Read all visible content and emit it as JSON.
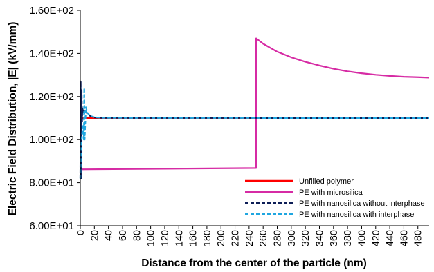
{
  "chart_data": {
    "type": "line",
    "xlabel": "Distance from the center of the particle (nm)",
    "ylabel": "Electric Field Distribution, |E| (kV/mm)",
    "xlim": [
      0,
      496
    ],
    "ylim": [
      60,
      160
    ],
    "y_ticks": [
      60,
      80,
      100,
      120,
      140,
      160
    ],
    "y_tick_labels": [
      "6.00E+01",
      "8.00E+01",
      "1.00E+02",
      "1.20E+02",
      "1.40E+02",
      "1.60E+02"
    ],
    "x_ticks": [
      0,
      20,
      40,
      60,
      80,
      100,
      120,
      140,
      160,
      180,
      200,
      220,
      240,
      260,
      280,
      300,
      320,
      340,
      360,
      380,
      400,
      420,
      440,
      460,
      480
    ],
    "x_tick_labels": [
      "0",
      "20",
      "40",
      "60",
      "80",
      "100",
      "120",
      "140",
      "160",
      "180",
      "200",
      "220",
      "240",
      "260",
      "280",
      "300",
      "320",
      "340",
      "360",
      "380",
      "400",
      "420",
      "440",
      "460",
      "480"
    ],
    "grid": false,
    "legend_position": "bottom-right",
    "series": [
      {
        "name": "Unfilled polymer",
        "color": "#ff0000",
        "dash": "solid",
        "x": [
          0,
          496
        ],
        "y": [
          110,
          110
        ]
      },
      {
        "name": "PE with microsilica",
        "color": "#d62ba4",
        "dash": "solid",
        "x": [
          0,
          250,
          250,
          260,
          280,
          300,
          320,
          340,
          360,
          380,
          400,
          420,
          440,
          460,
          480,
          496
        ],
        "y": [
          86.2,
          86.8,
          147,
          144.5,
          140.8,
          138.2,
          136.1,
          134.4,
          132.9,
          131.7,
          130.8,
          130.1,
          129.6,
          129.2,
          129.0,
          128.8
        ]
      },
      {
        "name": "PE with nanosilica without interphase",
        "color": "#0d1e57",
        "dash": "dashed",
        "x": [
          0,
          0.6,
          1.2,
          1.9,
          2.5,
          3,
          4,
          6,
          8,
          10,
          14,
          20,
          30,
          496
        ],
        "y": [
          82,
          127,
          82,
          123,
          108,
          115,
          112,
          114,
          113,
          112,
          111,
          110.3,
          110.1,
          110
        ]
      },
      {
        "name": "PE with nanosilica with interphase",
        "color": "#1fa6e0",
        "dash": "dashed",
        "x": [
          0,
          1,
          2,
          3,
          4,
          5,
          5.6,
          6.2,
          8,
          10,
          14,
          20,
          30,
          496
        ],
        "y": [
          82,
          95,
          100,
          104,
          107,
          100,
          124,
          100,
          115,
          112.5,
          111,
          110.4,
          110.1,
          110
        ]
      }
    ]
  }
}
